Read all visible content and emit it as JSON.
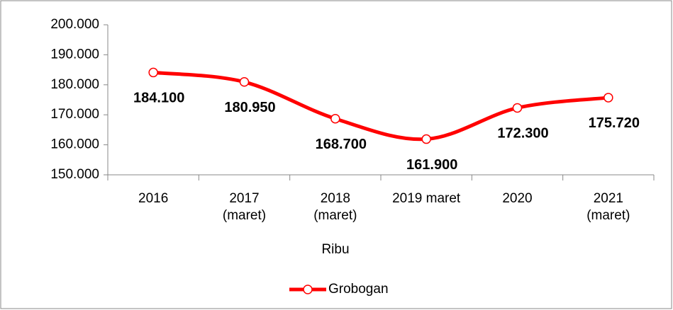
{
  "chart_data": {
    "type": "line",
    "categories": [
      "2016",
      "2017\n(maret)",
      "2018\n(maret)",
      "2019 maret",
      "2020",
      "2021\n(maret)"
    ],
    "x_label": "Ribu",
    "series": [
      {
        "name": "Grobogan",
        "color": "#ff0000",
        "values": [
          184100,
          180950,
          168700,
          161900,
          172300,
          175720
        ],
        "value_labels": [
          "184.100",
          "180.950",
          "168.700",
          "161.900",
          "172.300",
          "175.720"
        ]
      }
    ],
    "ylim": [
      150000,
      200000
    ],
    "yticks": [
      {
        "value": 150000,
        "label": "150.000"
      },
      {
        "value": 160000,
        "label": "160.000"
      },
      {
        "value": 170000,
        "label": "170.000"
      },
      {
        "value": 180000,
        "label": "180.000"
      },
      {
        "value": 190000,
        "label": "190.000"
      },
      {
        "value": 200000,
        "label": "200.000"
      }
    ],
    "smooth": true,
    "legend": "bottom"
  }
}
